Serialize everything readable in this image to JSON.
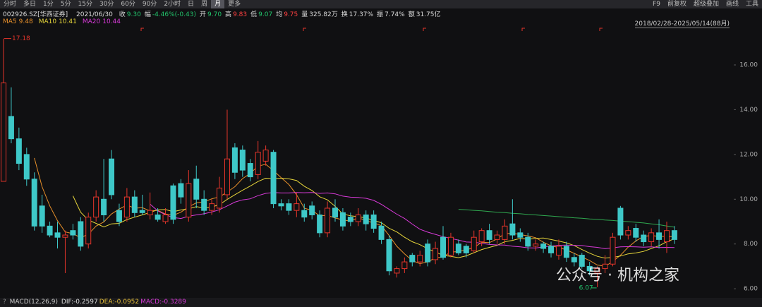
{
  "toolbar": {
    "items": [
      "分时",
      "多日",
      "1分",
      "5分",
      "15分",
      "30分",
      "60分",
      "90分",
      "2小时",
      "日",
      "周",
      "月",
      "更多"
    ],
    "active_index": 11,
    "right_items": [
      "F9",
      "前复权",
      "超级叠加",
      "画线",
      "工具"
    ]
  },
  "info": {
    "code": "002926.SZ[华西证券]",
    "date": "2021/06/30",
    "fields": [
      {
        "key": "收",
        "value": "9.30",
        "color": "#22c36b"
      },
      {
        "key": "幅",
        "value": "-4.46%(-0.43)",
        "color": "#22c36b"
      },
      {
        "key": "开",
        "value": "9.70",
        "color": "#22c36b"
      },
      {
        "key": "高",
        "value": "9.83",
        "color": "#ff4040"
      },
      {
        "key": "低",
        "value": "9.07",
        "color": "#22c36b"
      },
      {
        "key": "均",
        "value": "9.75",
        "color": "#ff4040"
      },
      {
        "key": "量",
        "value": "325.82万",
        "color": "#dddddd"
      },
      {
        "key": "换",
        "value": "17.37%",
        "color": "#dddddd"
      },
      {
        "key": "振",
        "value": "7.74%",
        "color": "#dddddd"
      },
      {
        "key": "额",
        "value": "31.75亿",
        "color": "#dddddd"
      }
    ]
  },
  "range_label": "2018/02/28-2025/05/14(88月)",
  "macd": {
    "title": "MACD(12,26,9)",
    "dif": "DIF:-0.2597",
    "dea": "DEA:-0.0952",
    "macd": "MACD:-0.3289"
  },
  "watermark": "公众号 · 机构之家",
  "chart_data": {
    "type": "candlestick",
    "up_color": "#e5352b",
    "down_color": "#3ec8c8",
    "ylim": [
      5.5,
      17.64
    ],
    "yticks": [
      {
        "value": 6,
        "label": "6.00"
      },
      {
        "value": 8,
        "label": "8.00"
      },
      {
        "value": 10,
        "label": "10.00"
      },
      {
        "value": 12,
        "label": "12.00"
      },
      {
        "value": 14,
        "label": "14.00"
      },
      {
        "value": 16,
        "label": "16.00"
      }
    ],
    "grid": false,
    "open": [
      10.8,
      13.7,
      12.7,
      12.0,
      10.9,
      9.7,
      8.8,
      8.5,
      8.3,
      8.6,
      9.0,
      8.0,
      9.2,
      10.0,
      11.8,
      9.5,
      9.2,
      10.1,
      9.5,
      9.3,
      9.3,
      9.0,
      10.6,
      10.7,
      9.2,
      10.9,
      10.0,
      9.5,
      9.6,
      10.2,
      12.3,
      12.2,
      11.6,
      11.1,
      11.7,
      12.1,
      9.8,
      9.8,
      9.5,
      9.5,
      9.7,
      9.3,
      8.5,
      9.6,
      9.4,
      9.2,
      9.0,
      9.3,
      9.3,
      8.8,
      8.2,
      6.7,
      6.9,
      7.5,
      7.2,
      8.0,
      7.3,
      8.3,
      7.5,
      8.0,
      7.9,
      7.7,
      8.1,
      8.6,
      8.2,
      8.2,
      8.9,
      8.5,
      8.3,
      7.9,
      8.0,
      7.9,
      7.5,
      7.9,
      7.4,
      7.5,
      7.0,
      6.7,
      6.9,
      7.1,
      9.6,
      8.4,
      8.7,
      8.4,
      8.1,
      8.5,
      8.1,
      8.6
    ],
    "high": [
      17.18,
      15.0,
      13.2,
      12.3,
      11.2,
      10.2,
      9.0,
      9.0,
      8.6,
      8.9,
      9.2,
      9.4,
      10.4,
      11.8,
      12.2,
      9.8,
      10.5,
      10.4,
      10.2,
      10.3,
      9.6,
      9.6,
      10.7,
      10.9,
      11.3,
      11.5,
      10.4,
      10.0,
      11.0,
      14.0,
      12.5,
      12.4,
      11.8,
      12.6,
      12.4,
      12.2,
      10.0,
      10.0,
      10.3,
      9.8,
      9.9,
      9.5,
      9.9,
      10.0,
      9.6,
      9.4,
      9.6,
      9.5,
      9.5,
      9.0,
      8.4,
      7.0,
      7.4,
      7.6,
      7.7,
      8.2,
      8.1,
      8.8,
      8.5,
      8.2,
      8.0,
      8.6,
      8.7,
      8.9,
      8.6,
      9.1,
      10.0,
      8.7,
      8.5,
      8.2,
      8.1,
      8.1,
      8.2,
      8.1,
      7.6,
      7.6,
      7.2,
      7.0,
      7.5,
      8.5,
      9.7,
      8.8,
      8.9,
      8.6,
      8.7,
      9.1,
      9.0,
      8.8
    ],
    "low": [
      10.8,
      12.5,
      11.3,
      10.6,
      8.6,
      8.5,
      8.3,
      7.8,
      6.7,
      8.2,
      7.7,
      7.8,
      9.0,
      9.0,
      10.0,
      8.8,
      9.0,
      9.2,
      9.3,
      9.1,
      9.0,
      8.9,
      8.9,
      9.8,
      9.0,
      9.6,
      9.3,
      9.3,
      9.4,
      10.0,
      10.9,
      11.0,
      10.8,
      10.9,
      11.5,
      9.6,
      9.5,
      9.3,
      9.2,
      9.0,
      9.1,
      8.3,
      8.3,
      9.0,
      8.6,
      8.8,
      8.8,
      8.6,
      8.5,
      8.0,
      6.6,
      6.5,
      6.7,
      7.0,
      7.0,
      7.0,
      7.1,
      7.3,
      7.4,
      7.5,
      7.4,
      7.6,
      7.9,
      8.0,
      8.0,
      8.0,
      8.2,
      8.1,
      7.7,
      7.7,
      7.6,
      7.4,
      7.3,
      7.2,
      7.0,
      6.9,
      6.6,
      6.07,
      6.7,
      7.0,
      8.2,
      8.2,
      8.1,
      7.9,
      7.9,
      7.8,
      7.6,
      8.0
    ],
    "close": [
      15.2,
      12.7,
      11.6,
      10.9,
      8.8,
      8.8,
      8.4,
      8.3,
      8.4,
      8.4,
      7.9,
      9.2,
      10.1,
      9.3,
      10.2,
      9.0,
      10.1,
      9.4,
      9.4,
      9.5,
      9.1,
      9.3,
      9.1,
      10.1,
      10.7,
      10.0,
      9.5,
      9.8,
      10.5,
      11.8,
      11.2,
      11.3,
      11.0,
      12.1,
      12.2,
      9.8,
      9.7,
      9.5,
      9.8,
      9.2,
      9.3,
      8.5,
      9.6,
      9.2,
      8.8,
      9.0,
      9.3,
      8.9,
      8.7,
      8.2,
      6.8,
      6.9,
      7.2,
      7.2,
      7.5,
      7.2,
      7.8,
      7.4,
      8.3,
      7.6,
      7.6,
      8.3,
      8.6,
      8.2,
      8.4,
      8.8,
      8.4,
      8.3,
      7.9,
      8.0,
      7.8,
      7.6,
      7.9,
      7.4,
      7.2,
      7.0,
      6.8,
      6.9,
      7.1,
      8.3,
      8.4,
      8.6,
      8.3,
      8.1,
      8.5,
      8.2,
      8.6,
      8.2
    ],
    "series": [
      {
        "name": "MA5",
        "legend_value": 9.48,
        "color": "#e8902a",
        "values": [
          null,
          null,
          null,
          null,
          11.84,
          10.56,
          9.7,
          9.04,
          8.54,
          8.46,
          8.28,
          8.44,
          8.8,
          8.98,
          9.34,
          9.56,
          9.74,
          9.6,
          9.62,
          9.48,
          9.5,
          9.34,
          9.28,
          9.42,
          9.66,
          9.84,
          9.88,
          10.02,
          10.1,
          10.32,
          10.56,
          10.92,
          11.16,
          11.48,
          11.56,
          11.28,
          10.96,
          10.66,
          10.2,
          9.6,
          9.5,
          9.26,
          9.28,
          9.16,
          9.08,
          9.02,
          9.18,
          9.04,
          8.94,
          8.82,
          8.38,
          7.9,
          7.56,
          7.26,
          7.12,
          7.2,
          7.38,
          7.42,
          7.64,
          7.66,
          7.74,
          7.84,
          8.08,
          8.06,
          8.22,
          8.46,
          8.48,
          8.42,
          8.36,
          8.28,
          8.08,
          7.92,
          7.84,
          7.74,
          7.58,
          7.42,
          7.26,
          7.06,
          7.0,
          7.22,
          7.5,
          7.86,
          8.14,
          8.34,
          8.38,
          8.34,
          8.34,
          8.32
        ]
      },
      {
        "name": "MA10",
        "legend_value": 10.41,
        "color": "#e6d53a",
        "values": [
          null,
          null,
          null,
          null,
          null,
          null,
          null,
          null,
          null,
          10.15,
          9.42,
          9.07,
          8.92,
          8.76,
          8.9,
          8.92,
          9.09,
          9.2,
          9.3,
          9.41,
          9.53,
          9.54,
          9.44,
          9.52,
          9.57,
          9.67,
          9.61,
          9.65,
          9.76,
          9.99,
          10.2,
          10.4,
          10.59,
          10.79,
          10.94,
          10.92,
          10.94,
          10.91,
          10.84,
          10.58,
          10.39,
          10.11,
          9.97,
          9.68,
          9.34,
          9.26,
          9.22,
          9.16,
          9.05,
          8.95,
          8.7,
          8.54,
          8.3,
          8.1,
          7.97,
          7.79,
          7.64,
          7.49,
          7.45,
          7.39,
          7.47,
          7.61,
          7.75,
          7.85,
          7.94,
          8.1,
          8.16,
          8.25,
          8.21,
          8.25,
          8.27,
          8.2,
          8.13,
          8.05,
          7.93,
          7.75,
          7.59,
          7.45,
          7.37,
          7.4,
          7.46,
          7.56,
          7.6,
          7.67,
          7.8,
          7.92,
          8.1,
          8.23
        ]
      },
      {
        "name": "MA20",
        "legend_value": 10.44,
        "color": "#d83ad8",
        "values": [
          null,
          null,
          null,
          null,
          null,
          null,
          null,
          null,
          null,
          null,
          null,
          null,
          null,
          null,
          null,
          null,
          null,
          null,
          null,
          9.78,
          9.48,
          9.31,
          9.18,
          9.14,
          9.24,
          9.3,
          9.35,
          9.43,
          9.53,
          9.7,
          9.87,
          9.97,
          10.02,
          10.16,
          10.26,
          10.3,
          10.28,
          10.28,
          10.3,
          10.29,
          10.3,
          10.26,
          10.28,
          10.24,
          10.14,
          10.09,
          10.08,
          10.04,
          9.95,
          9.77,
          9.55,
          9.33,
          9.14,
          8.89,
          8.66,
          8.53,
          8.43,
          8.33,
          8.25,
          8.17,
          8.09,
          8.08,
          8.03,
          7.98,
          7.96,
          7.95,
          7.9,
          7.87,
          7.83,
          7.82,
          7.87,
          7.91,
          7.94,
          7.95,
          7.94,
          7.93,
          7.88,
          7.85,
          7.79,
          7.83,
          7.87,
          7.88,
          7.87,
          7.86,
          7.87,
          7.84,
          7.85,
          7.84
        ]
      },
      {
        "color": "#2fa84f",
        "values": [
          null,
          null,
          null,
          null,
          null,
          null,
          null,
          null,
          null,
          null,
          null,
          null,
          null,
          null,
          null,
          null,
          null,
          null,
          null,
          null,
          null,
          null,
          null,
          null,
          null,
          null,
          null,
          null,
          null,
          null,
          null,
          null,
          null,
          null,
          null,
          null,
          null,
          null,
          null,
          null,
          null,
          null,
          null,
          null,
          null,
          null,
          null,
          null,
          null,
          null,
          null,
          null,
          null,
          null,
          null,
          null,
          null,
          null,
          null,
          9.55,
          9.53,
          9.5,
          9.48,
          9.45,
          9.42,
          9.4,
          9.37,
          9.35,
          9.32,
          9.3,
          9.27,
          9.25,
          9.22,
          9.2,
          9.17,
          9.15,
          9.12,
          9.1,
          9.07,
          9.05,
          9.02,
          9.0,
          8.97,
          8.94,
          8.9,
          8.86,
          8.8,
          8.75
        ]
      }
    ],
    "max_index": 0,
    "min_index": 77
  }
}
